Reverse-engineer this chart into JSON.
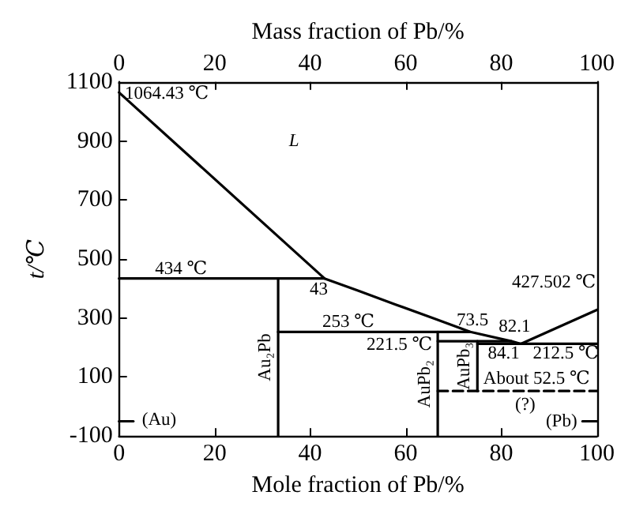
{
  "chart_data": {
    "type": "line",
    "xlabel": "Mole fraction of Pb/%",
    "x2label": "Mass fraction of Pb/%",
    "ylabel": "t/℃",
    "xlim": [
      0,
      100
    ],
    "xticks": [
      0,
      20,
      40,
      60,
      80,
      100
    ],
    "x2lim": [
      0,
      100
    ],
    "x2ticks": [
      0,
      20,
      40,
      60,
      80,
      100
    ],
    "ylim": [
      -100,
      1100
    ],
    "yticks": [
      -100,
      100,
      300,
      500,
      700,
      900,
      1100
    ],
    "grid": false,
    "legend": false,
    "marker": "none",
    "series": [
      {
        "color": "#000000",
        "x": [
          0,
          43,
          50,
          58,
          66,
          73.5,
          82.1,
          84.1,
          100
        ],
        "values": [
          1064.43,
          434,
          393,
          345,
          298,
          253,
          221.5,
          212.5,
          327.5
        ]
      },
      {
        "color": "#000000",
        "x": [
          0,
          43
        ],
        "values": [
          434,
          434
        ]
      },
      {
        "name": "Au₂Pb",
        "color": "#000000",
        "x": [
          33.3,
          33.3
        ],
        "values": [
          434,
          -100
        ]
      },
      {
        "color": "#000000",
        "x": [
          33.3,
          73.5
        ],
        "values": [
          253,
          253
        ]
      },
      {
        "name": "AuPb₂",
        "color": "#000000",
        "x": [
          66.7,
          66.7
        ],
        "values": [
          253,
          -100
        ]
      },
      {
        "color": "#000000",
        "x": [
          66.7,
          82.1
        ],
        "values": [
          221.5,
          221.5
        ]
      },
      {
        "name": "AuPb₃",
        "color": "#000000",
        "x": [
          75,
          75
        ],
        "values": [
          221.5,
          52.5
        ]
      },
      {
        "color": "#000000",
        "x": [
          75,
          100
        ],
        "values": [
          212.5,
          212.5
        ]
      },
      {
        "color": "#000000",
        "x": [
          66.7,
          100
        ],
        "values": [
          52.5,
          52.5
        ],
        "line_style": "dashed"
      },
      {
        "color": "#000000",
        "x": [
          0,
          3
        ],
        "values": [
          -50,
          -50
        ]
      },
      {
        "color": "#000000",
        "x": [
          97,
          100
        ],
        "values": [
          -50,
          -50
        ]
      }
    ],
    "annotations": [
      "1064.43 ℃",
      "L",
      "434 ℃",
      "43",
      "253 ℃",
      "73.5",
      "82.1",
      "221.5 ℃",
      "212.5 ℃",
      "84.1",
      "427.502 ℃",
      "About 52.5 ℃",
      "(?)",
      "(Au)",
      "(Pb)"
    ]
  }
}
